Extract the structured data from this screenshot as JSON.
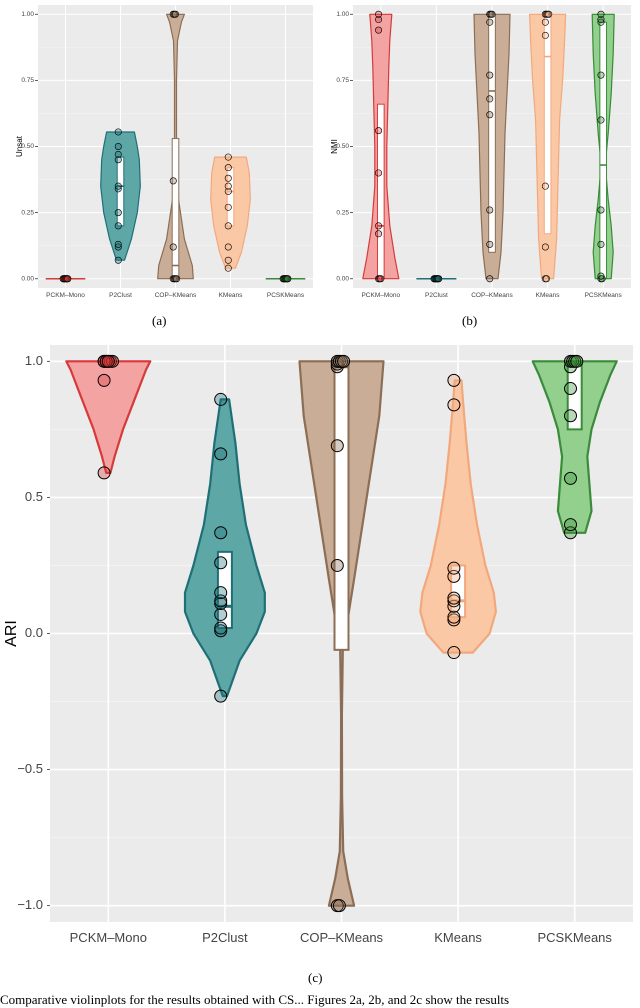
{
  "colors": {
    "panel_bg": "#ebebeb",
    "grid_major": "#ffffff",
    "grid_minor": "#f4f4f4"
  },
  "chart_data": [
    {
      "id": "a",
      "type": "violin",
      "panel_label": "(a)",
      "ylabel": "Unsat",
      "ylim": [
        -0.035,
        1.035
      ],
      "yticks": [
        0.0,
        0.25,
        0.5,
        0.75,
        1.0
      ],
      "ytick_labels": [
        "0.00",
        "0.25",
        "0.50",
        "0.75",
        "1.00"
      ],
      "categories": [
        "PCKM–Mono",
        "P2Clust",
        "COP–KMeans",
        "KMeans",
        "PCSKMeans"
      ],
      "series": [
        {
          "fill": "#f4a3a3",
          "stroke": "#d63a3a",
          "kde": [],
          "box": [
            0,
            0,
            0
          ],
          "points": [
            0,
            0,
            0,
            0,
            0,
            0,
            0,
            0,
            0,
            0
          ]
        },
        {
          "fill": "#5ea7a7",
          "stroke": "#1f6f77",
          "kde": [
            [
              0.07,
              0.2
            ],
            [
              0.15,
              0.55
            ],
            [
              0.25,
              0.85
            ],
            [
              0.35,
              1.0
            ],
            [
              0.45,
              0.95
            ],
            [
              0.5,
              0.85
            ],
            [
              0.555,
              0.7
            ]
          ],
          "box": [
            0.2,
            0.35,
            0.46
          ],
          "points": [
            0.07,
            0.12,
            0.13,
            0.2,
            0.25,
            0.34,
            0.35,
            0.45,
            0.47,
            0.5,
            0.555
          ]
        },
        {
          "fill": "#c9ad96",
          "stroke": "#8b6e55",
          "kde": [
            [
              0,
              0.9
            ],
            [
              0.05,
              0.85
            ],
            [
              0.15,
              0.45
            ],
            [
              0.3,
              0.15
            ],
            [
              0.45,
              0.05
            ],
            [
              0.6,
              0.05
            ],
            [
              0.75,
              0.05
            ],
            [
              0.9,
              0.1
            ],
            [
              0.97,
              0.3
            ],
            [
              1.0,
              0.45
            ]
          ],
          "box": [
            0.0,
            0.05,
            0.53
          ],
          "points": [
            0,
            0,
            0,
            0,
            0.12,
            0.37,
            1,
            1,
            1
          ]
        },
        {
          "fill": "#fbc8a6",
          "stroke": "#f2a87c",
          "kde": [
            [
              0.04,
              0.25
            ],
            [
              0.1,
              0.55
            ],
            [
              0.2,
              0.85
            ],
            [
              0.3,
              1.0
            ],
            [
              0.4,
              0.95
            ],
            [
              0.46,
              0.8
            ]
          ],
          "box": [
            0.2,
            0.33,
            0.42
          ],
          "points": [
            0.04,
            0.07,
            0.12,
            0.2,
            0.27,
            0.33,
            0.35,
            0.38,
            0.42,
            0.46
          ]
        },
        {
          "fill": "#93cf8d",
          "stroke": "#3a8b3a",
          "kde": [],
          "box": [
            0,
            0,
            0
          ],
          "points": [
            0,
            0,
            0,
            0,
            0,
            0,
            0,
            0,
            0,
            0
          ]
        }
      ]
    },
    {
      "id": "b",
      "type": "violin",
      "panel_label": "(b)",
      "ylabel": "NMI",
      "ylim": [
        -0.035,
        1.035
      ],
      "yticks": [
        0.0,
        0.25,
        0.5,
        0.75,
        1.0
      ],
      "ytick_labels": [
        "0.00",
        "0.25",
        "0.50",
        "0.75",
        "1.00"
      ],
      "categories": [
        "PCKM–Mono",
        "P2Clust",
        "COP–KMeans",
        "KMeans",
        "PCSKMeans"
      ],
      "series": [
        {
          "fill": "#f4a3a3",
          "stroke": "#d63a3a",
          "kde": [
            [
              0,
              0.9
            ],
            [
              0.08,
              0.7
            ],
            [
              0.2,
              0.45
            ],
            [
              0.35,
              0.3
            ],
            [
              0.5,
              0.3
            ],
            [
              0.65,
              0.35
            ],
            [
              0.8,
              0.4
            ],
            [
              0.9,
              0.45
            ],
            [
              1.0,
              0.55
            ]
          ],
          "box": [
            0.0,
            0.2,
            0.66
          ],
          "points": [
            0,
            0,
            0,
            0.17,
            0.2,
            0.4,
            0.56,
            0.94,
            0.98,
            1.0
          ]
        },
        {
          "fill": "#5ea7a7",
          "stroke": "#1f6f77",
          "kde": [],
          "box": [
            0,
            0,
            0
          ],
          "points": [
            0,
            0,
            0,
            0,
            0,
            0,
            0,
            0,
            0,
            0
          ]
        },
        {
          "fill": "#c9ad96",
          "stroke": "#8b6e55",
          "kde": [
            [
              0,
              0.3
            ],
            [
              0.1,
              0.45
            ],
            [
              0.25,
              0.55
            ],
            [
              0.4,
              0.6
            ],
            [
              0.55,
              0.65
            ],
            [
              0.7,
              0.75
            ],
            [
              0.85,
              0.85
            ],
            [
              1.0,
              0.9
            ]
          ],
          "box": [
            0.1,
            0.71,
            1.0
          ],
          "points": [
            0,
            0.13,
            0.26,
            0.62,
            0.68,
            0.77,
            0.97,
            1,
            1,
            1
          ]
        },
        {
          "fill": "#fbc8a6",
          "stroke": "#f2a87c",
          "kde": [
            [
              0,
              0.3
            ],
            [
              0.15,
              0.45
            ],
            [
              0.3,
              0.5
            ],
            [
              0.45,
              0.55
            ],
            [
              0.6,
              0.6
            ],
            [
              0.75,
              0.75
            ],
            [
              0.9,
              0.85
            ],
            [
              1.0,
              0.9
            ]
          ],
          "box": [
            0.17,
            0.84,
            1.0
          ],
          "points": [
            0,
            0,
            0.12,
            0.35,
            0.92,
            0.97,
            1,
            1,
            1,
            1
          ]
        },
        {
          "fill": "#93cf8d",
          "stroke": "#3a8b3a",
          "kde": [
            [
              0,
              0.4
            ],
            [
              0.1,
              0.5
            ],
            [
              0.2,
              0.4
            ],
            [
              0.3,
              0.25
            ],
            [
              0.43,
              0.1
            ],
            [
              0.55,
              0.25
            ],
            [
              0.7,
              0.4
            ],
            [
              0.85,
              0.5
            ],
            [
              1.0,
              0.55
            ]
          ],
          "box": [
            0.0,
            0.43,
            0.97
          ],
          "points": [
            0,
            0,
            0.01,
            0.13,
            0.26,
            0.6,
            0.77,
            0.97,
            0.98,
            1.0
          ]
        }
      ]
    },
    {
      "id": "c",
      "type": "violin",
      "panel_label": "(c)",
      "ylabel": "ARI",
      "ylim": [
        -1.06,
        1.06
      ],
      "yticks": [
        -1.0,
        -0.5,
        0.0,
        0.5,
        1.0
      ],
      "ytick_labels": [
        "−1.0",
        "−0.5",
        "0.0",
        "0.5",
        "1.0"
      ],
      "categories": [
        "PCKM–Mono",
        "P2Clust",
        "COP–KMeans",
        "KMeans",
        "PCSKMeans"
      ],
      "series": [
        {
          "fill": "#f4a3a3",
          "stroke": "#d63a3a",
          "kde": [
            [
              0.59,
              0.05
            ],
            [
              0.65,
              0.15
            ],
            [
              0.75,
              0.35
            ],
            [
              0.85,
              0.6
            ],
            [
              0.93,
              0.8
            ],
            [
              0.97,
              0.9
            ],
            [
              1.0,
              1.0
            ]
          ],
          "box": [
            1.0,
            1.0,
            1.0
          ],
          "points": [
            0.59,
            0.93,
            1,
            1,
            1,
            1,
            1,
            1,
            1,
            1
          ]
        },
        {
          "fill": "#5ea7a7",
          "stroke": "#1f6f77",
          "kde": [
            [
              -0.23,
              0.05
            ],
            [
              -0.1,
              0.35
            ],
            [
              0.0,
              0.75
            ],
            [
              0.08,
              0.95
            ],
            [
              0.15,
              0.95
            ],
            [
              0.25,
              0.75
            ],
            [
              0.4,
              0.5
            ],
            [
              0.55,
              0.35
            ],
            [
              0.7,
              0.25
            ],
            [
              0.86,
              0.1
            ]
          ],
          "box": [
            0.02,
            0.1,
            0.3
          ],
          "points": [
            -0.23,
            0.01,
            0.02,
            0.07,
            0.11,
            0.12,
            0.15,
            0.26,
            0.37,
            0.66,
            0.86
          ]
        },
        {
          "fill": "#c9ad96",
          "stroke": "#8b6e55",
          "kde": [
            [
              -1.0,
              0.3
            ],
            [
              -0.9,
              0.15
            ],
            [
              -0.8,
              0.04
            ],
            [
              -0.6,
              0.015
            ],
            [
              -0.3,
              0.01
            ],
            [
              -0.06,
              0.03
            ],
            [
              0.2,
              0.3
            ],
            [
              0.5,
              0.6
            ],
            [
              0.8,
              0.9
            ],
            [
              1.0,
              1.0
            ]
          ],
          "box": [
            -0.06,
            0.98,
            1.0
          ],
          "points": [
            -1,
            -1,
            0.25,
            0.69,
            0.98,
            0.99,
            1,
            1,
            1,
            1
          ]
        },
        {
          "fill": "#fbc8a6",
          "stroke": "#f2a87c",
          "kde": [
            [
              -0.07,
              0.35
            ],
            [
              0.0,
              0.75
            ],
            [
              0.08,
              0.9
            ],
            [
              0.15,
              0.85
            ],
            [
              0.25,
              0.65
            ],
            [
              0.4,
              0.45
            ],
            [
              0.55,
              0.3
            ],
            [
              0.7,
              0.2
            ],
            [
              0.85,
              0.12
            ],
            [
              0.93,
              0.08
            ]
          ],
          "box": [
            0.06,
            0.12,
            0.25
          ],
          "points": [
            -0.07,
            0.05,
            0.06,
            0.1,
            0.12,
            0.13,
            0.21,
            0.24,
            0.84,
            0.93
          ]
        },
        {
          "fill": "#93cf8d",
          "stroke": "#3a8b3a",
          "kde": [
            [
              0.37,
              0.25
            ],
            [
              0.45,
              0.4
            ],
            [
              0.55,
              0.35
            ],
            [
              0.65,
              0.3
            ],
            [
              0.75,
              0.4
            ],
            [
              0.85,
              0.6
            ],
            [
              0.95,
              0.85
            ],
            [
              1.0,
              1.0
            ]
          ],
          "box": [
            0.75,
            0.99,
            1.0
          ],
          "points": [
            0.37,
            0.4,
            0.57,
            0.8,
            0.9,
            0.98,
            1,
            1,
            1,
            1
          ]
        }
      ]
    }
  ],
  "caption": "Comparative violinplots for the results obtained with CS...   Figures 2a, 2b, and 2c show the results"
}
